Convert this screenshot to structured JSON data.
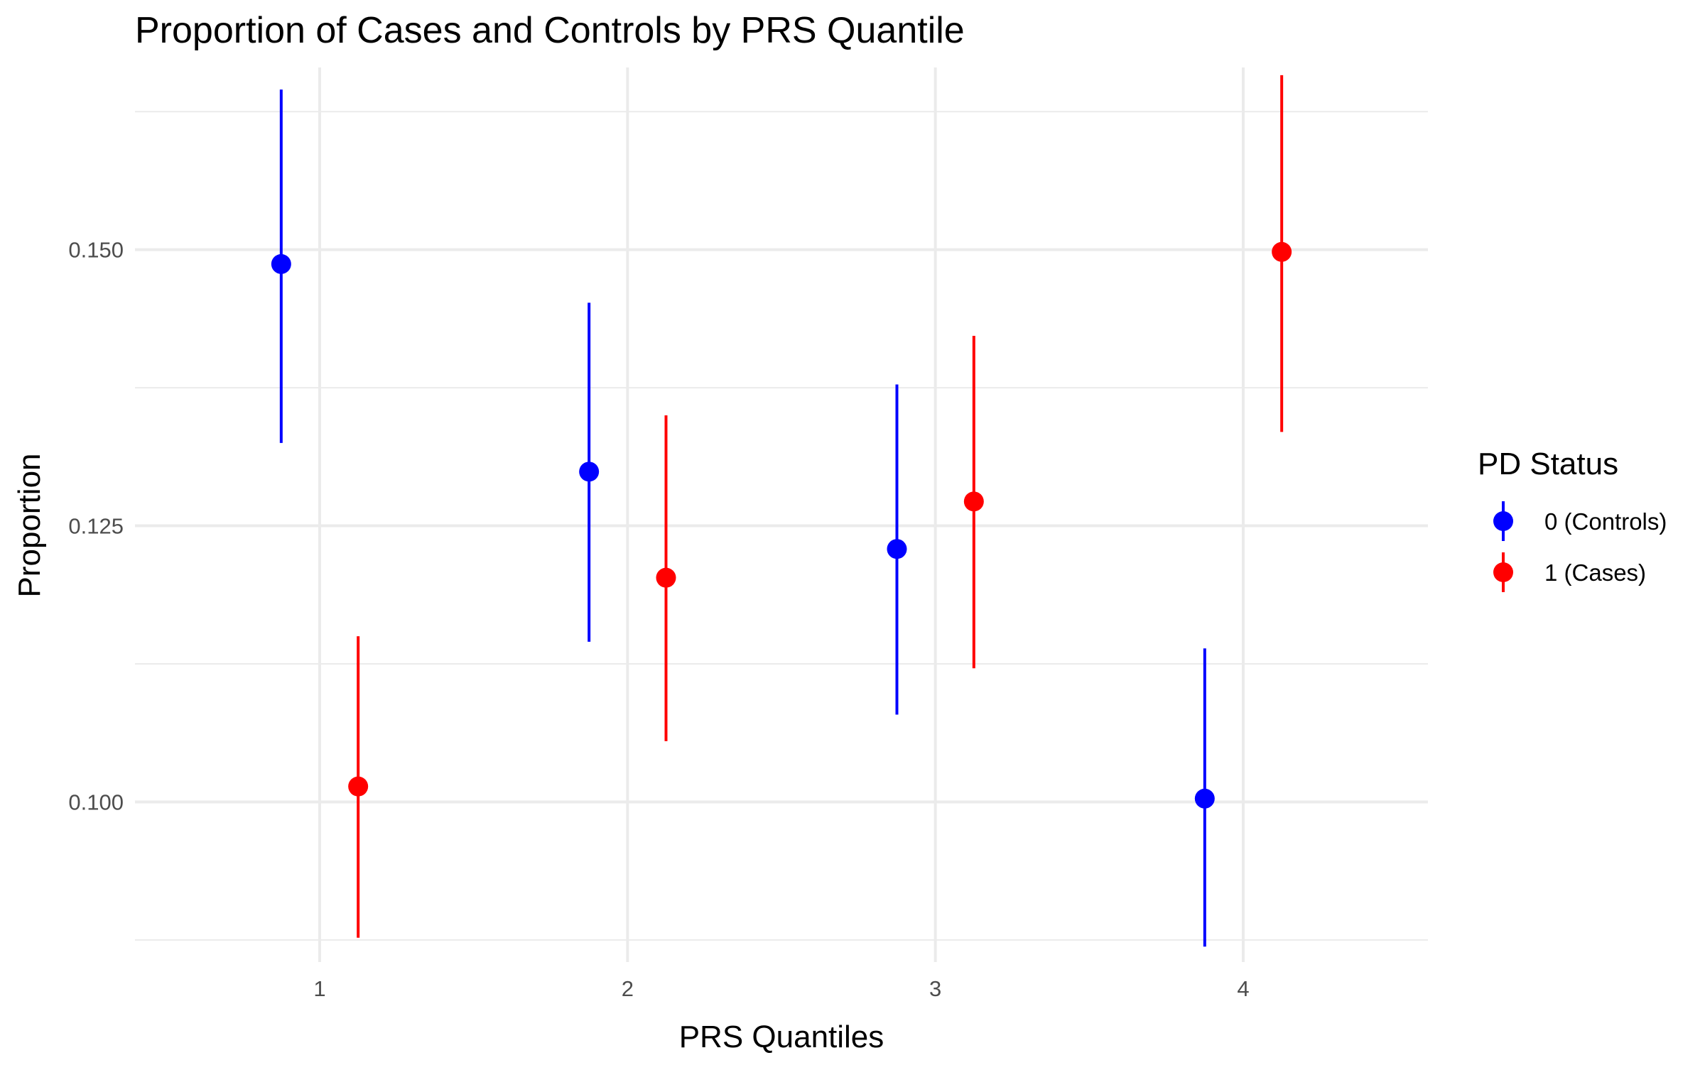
{
  "chart_data": {
    "type": "scatter",
    "title": "Proportion of Cases and Controls by PRS Quantile",
    "xlabel": "PRS Quantiles",
    "ylabel": "Proportion",
    "x_ticks": [
      "1",
      "2",
      "3",
      "4"
    ],
    "y_ticks": [
      "0.100",
      "0.125",
      "0.150"
    ],
    "xlim": [
      0.4,
      4.6
    ],
    "ylim": [
      0.0855,
      0.1665
    ],
    "grid": true,
    "legend": {
      "title": "PD Status",
      "placement": "right"
    },
    "series": [
      {
        "name": "0 (Controls)",
        "color": "#0000FF",
        "x": [
          1,
          2,
          3,
          4
        ],
        "values": [
          0.1487,
          0.1299,
          0.1229,
          0.1003
        ],
        "lower": [
          0.1325,
          0.1145,
          0.1079,
          0.0869
        ],
        "upper": [
          0.1645,
          0.1452,
          0.1378,
          0.1139
        ]
      },
      {
        "name": "1 (Cases)",
        "color": "#FF0000",
        "x": [
          1,
          2,
          3,
          4
        ],
        "values": [
          0.1014,
          0.1203,
          0.1272,
          0.1498
        ],
        "lower": [
          0.0877,
          0.1055,
          0.1121,
          0.1335
        ],
        "upper": [
          0.115,
          0.135,
          0.1422,
          0.1658
        ]
      }
    ]
  }
}
